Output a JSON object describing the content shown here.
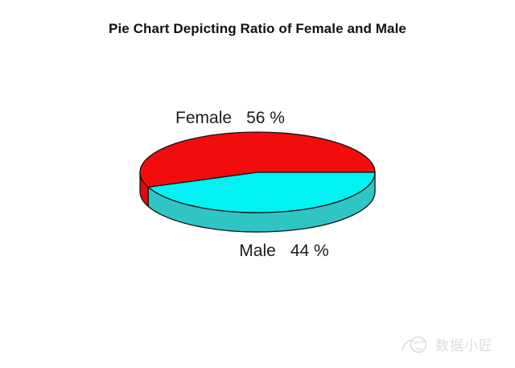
{
  "chart_data": {
    "type": "pie",
    "projection": "3d",
    "title": "Pie Chart Depicting Ratio of Female and Male",
    "unit": "%",
    "legend": "none",
    "background": "#FFFFFF",
    "start_angle_deg": 0,
    "direction": "counterclockwise",
    "outline_color": "#101014",
    "slices": [
      {
        "label": "Female",
        "value": 56,
        "value_text": "56 %",
        "top_color": "#F20D0D",
        "side_color": "#E00808"
      },
      {
        "label": "Male",
        "value": 44,
        "value_text": "44 %",
        "top_color": "#00F2F2",
        "side_color": "#30C5C5"
      }
    ]
  },
  "watermark": {
    "icon": "doodle-face-icon",
    "text": "数据小匠",
    "color": "#DCDCDC"
  }
}
